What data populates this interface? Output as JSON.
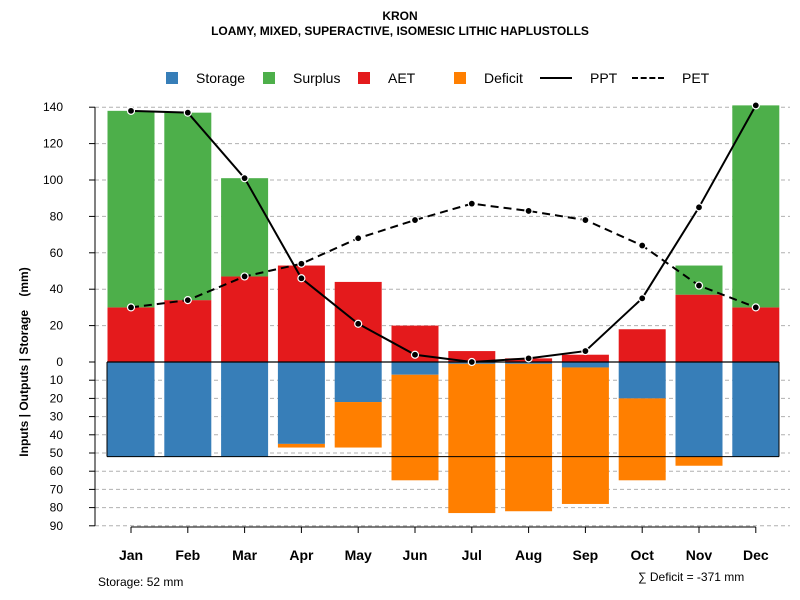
{
  "header": {
    "title": "KRON",
    "subtitle": "LOAMY, MIXED, SUPERACTIVE, ISOMESIC LITHIC HAPLUSTOLLS"
  },
  "legend": {
    "storage": "Storage",
    "surplus": "Surplus",
    "aet": "AET",
    "deficit": "Deficit",
    "ppt": "PPT",
    "pet": "PET"
  },
  "colors": {
    "storage": "#377EB8",
    "surplus": "#4DAF4A",
    "aet": "#E41A1C",
    "deficit": "#FF7F00"
  },
  "footer": {
    "storage_note": "Storage: 52 mm",
    "deficit_note": "∑ Deficit = -371 mm"
  },
  "chart_data": {
    "type": "bar",
    "title": "KRON",
    "subtitle": "LOAMY, MIXED, SUPERACTIVE, ISOMESIC LITHIC HAPLUSTOLLS",
    "ylabel": "Inputs | Outputs | Storage    (mm)",
    "categories": [
      "Jan",
      "Feb",
      "Mar",
      "Apr",
      "May",
      "Jun",
      "Jul",
      "Aug",
      "Sep",
      "Oct",
      "Nov",
      "Dec"
    ],
    "upper_ticks": [
      0,
      20,
      40,
      60,
      80,
      100,
      120,
      140
    ],
    "lower_ticks": [
      10,
      20,
      30,
      40,
      50,
      60,
      70,
      80,
      90
    ],
    "ylim_upper": [
      0,
      140
    ],
    "ylim_lower": [
      0,
      90
    ],
    "series": [
      {
        "name": "AET",
        "values": [
          30,
          34,
          47,
          53,
          44,
          20,
          6,
          2,
          4,
          18,
          37,
          30
        ]
      },
      {
        "name": "Surplus",
        "values": [
          108,
          103,
          54,
          0,
          0,
          0,
          0,
          0,
          0,
          0,
          16,
          111
        ]
      },
      {
        "name": "Storage",
        "values": [
          52,
          52,
          52,
          45,
          22,
          7,
          1,
          1,
          3,
          20,
          52,
          52
        ]
      },
      {
        "name": "Deficit",
        "values": [
          0,
          0,
          0,
          2,
          25,
          58,
          82,
          81,
          75,
          45,
          5,
          0
        ]
      },
      {
        "name": "PPT",
        "values": [
          138,
          137,
          101,
          46,
          21,
          4,
          0,
          2,
          6,
          35,
          85,
          141
        ]
      },
      {
        "name": "PET",
        "values": [
          30,
          34,
          47,
          54,
          68,
          78,
          87,
          83,
          78,
          64,
          42,
          30
        ]
      }
    ],
    "storage_capacity": 52
  }
}
